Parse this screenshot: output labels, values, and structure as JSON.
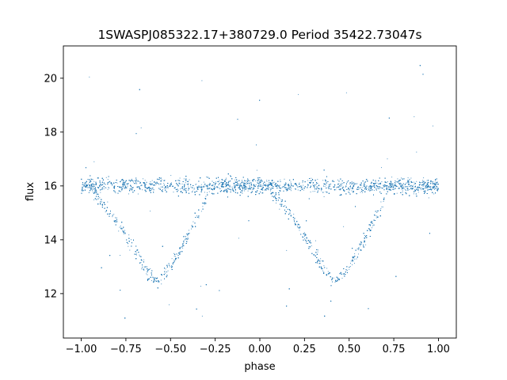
{
  "chart_data": {
    "type": "scatter",
    "title": "1SWASPJ085322.17+380729.0 Period 35422.73047s",
    "xlabel": "phase",
    "ylabel": "flux",
    "xlim": [
      -1.1,
      1.1
    ],
    "ylim": [
      10.35,
      21.2
    ],
    "x_ticks": [
      -1.0,
      -0.75,
      -0.5,
      -0.25,
      0.0,
      0.25,
      0.5,
      0.75,
      1.0
    ],
    "x_tick_labels": [
      "−1.00",
      "−0.75",
      "−0.50",
      "−0.25",
      "0.00",
      "0.25",
      "0.50",
      "0.75",
      "1.00"
    ],
    "y_ticks": [
      12,
      14,
      16,
      18,
      20
    ],
    "y_tick_labels": [
      "12",
      "14",
      "16",
      "18",
      "20"
    ],
    "grid": false,
    "marker_color": "#1f77b4",
    "series": [
      {
        "description_of_shape": "",
        "baseline_flux": 16.0,
        "baseline_scatter": 0.2,
        "minima": [
          {
            "phase": -0.57,
            "flux": 12.4
          },
          {
            "phase": 0.43,
            "flux": 12.4
          }
        ],
        "eclipse_start_phases": [
          -0.93,
          0.07
        ],
        "eclipse_end_phases": [
          -0.3,
          0.7
        ],
        "phase_range": [
          -1.0,
          1.0
        ],
        "curve_points": [
          {
            "x": -1.0,
            "y": 15.9
          },
          {
            "x": -0.9,
            "y": 15.5
          },
          {
            "x": -0.8,
            "y": 14.7
          },
          {
            "x": -0.7,
            "y": 13.6
          },
          {
            "x": -0.62,
            "y": 12.7
          },
          {
            "x": -0.57,
            "y": 12.4
          },
          {
            "x": -0.5,
            "y": 13.0
          },
          {
            "x": -0.4,
            "y": 14.2
          },
          {
            "x": -0.3,
            "y": 15.5
          },
          {
            "x": -0.2,
            "y": 16.0
          },
          {
            "x": 0.0,
            "y": 16.0
          },
          {
            "x": 0.1,
            "y": 15.5
          },
          {
            "x": 0.2,
            "y": 14.7
          },
          {
            "x": 0.3,
            "y": 13.6
          },
          {
            "x": 0.38,
            "y": 12.7
          },
          {
            "x": 0.43,
            "y": 12.4
          },
          {
            "x": 0.5,
            "y": 13.0
          },
          {
            "x": 0.6,
            "y": 14.2
          },
          {
            "x": 0.7,
            "y": 15.5
          },
          {
            "x": 0.8,
            "y": 16.0
          },
          {
            "x": 1.0,
            "y": 16.0
          }
        ]
      }
    ]
  }
}
